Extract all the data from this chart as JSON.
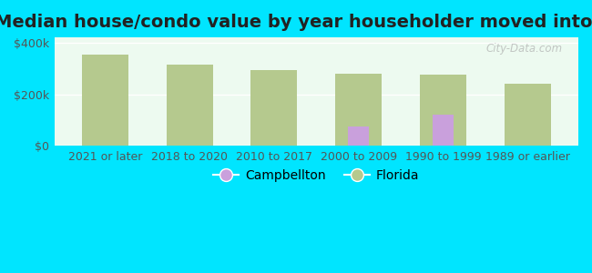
{
  "title": "Median house/condo value by year householder moved into unit",
  "categories": [
    "2021 or later",
    "2018 to 2020",
    "2010 to 2017",
    "2000 to 2009",
    "1990 to 1999",
    "1989 or earlier"
  ],
  "campbellton_values": [
    null,
    null,
    null,
    75000,
    120000,
    null
  ],
  "florida_values": [
    355000,
    315000,
    295000,
    280000,
    275000,
    240000
  ],
  "campbellton_color": "#c9a0dc",
  "florida_color": "#b5c98e",
  "background_color": "#edfaf0",
  "outer_background": "#00e5ff",
  "florida_bar_width": 0.55,
  "campbellton_bar_width": 0.25,
  "ylim": [
    0,
    420000
  ],
  "ytick_values": [
    0,
    200000,
    400000
  ],
  "ytick_labels": [
    "$0",
    "$200k",
    "$400k"
  ],
  "title_fontsize": 14,
  "tick_fontsize": 9,
  "legend_fontsize": 10,
  "watermark": "City-Data.com"
}
